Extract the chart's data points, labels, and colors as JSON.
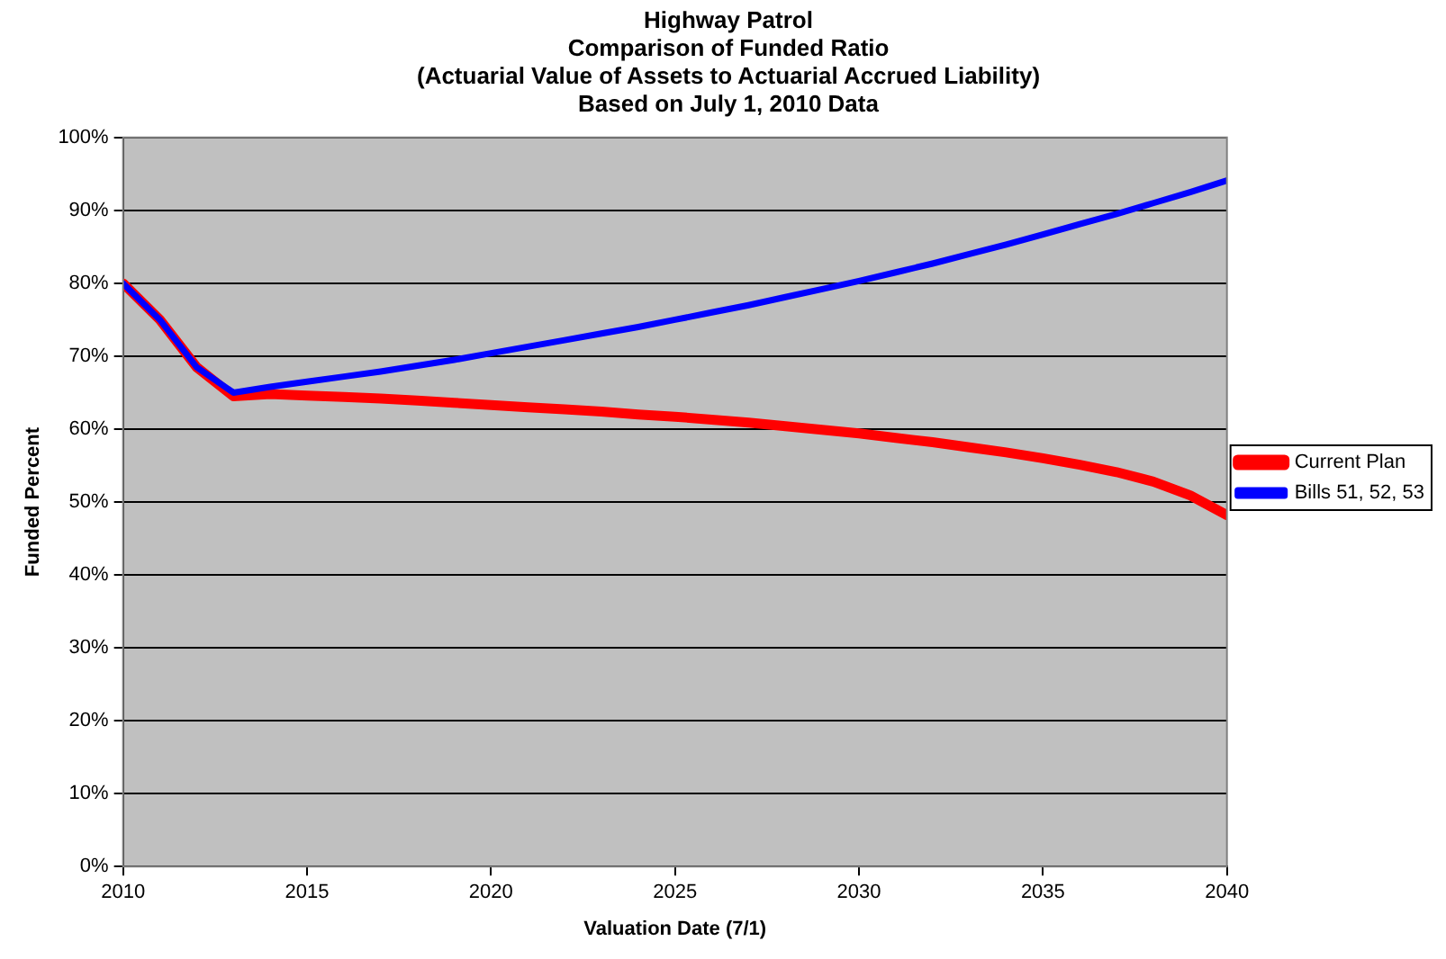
{
  "chart_data": {
    "type": "line",
    "title": [
      "Highway Patrol",
      "Comparison of Funded Ratio",
      "(Actuarial Value of Assets to Actuarial Accrued Liability)",
      "Based on July 1, 2010 Data"
    ],
    "xlabel": "Valuation Date (7/1)",
    "ylabel": "Funded Percent",
    "x": [
      2010,
      2011,
      2012,
      2013,
      2014,
      2015,
      2016,
      2017,
      2018,
      2019,
      2020,
      2021,
      2022,
      2023,
      2024,
      2025,
      2026,
      2027,
      2028,
      2029,
      2030,
      2031,
      2032,
      2033,
      2034,
      2035,
      2036,
      2037,
      2038,
      2039,
      2040
    ],
    "series": [
      {
        "name": "Current Plan",
        "color": "#ff0000",
        "values": [
          80,
          75,
          68.5,
          64.5,
          64.8,
          64.6,
          64.4,
          64.2,
          63.9,
          63.6,
          63.3,
          63.0,
          62.7,
          62.4,
          62.0,
          61.7,
          61.3,
          60.9,
          60.4,
          59.9,
          59.4,
          58.8,
          58.2,
          57.5,
          56.8,
          56.0,
          55.1,
          54.1,
          52.8,
          50.9,
          48.2
        ]
      },
      {
        "name": "Bills 51, 52, 53",
        "color": "#0000ff",
        "values": [
          80,
          75,
          68.5,
          65,
          65.8,
          66.5,
          67.2,
          67.9,
          68.7,
          69.5,
          70.4,
          71.3,
          72.2,
          73.1,
          74.0,
          75.0,
          76.0,
          77.0,
          78.1,
          79.2,
          80.3,
          81.5,
          82.7,
          84.0,
          85.3,
          86.7,
          88.1,
          89.5,
          91.0,
          92.5,
          94.1
        ]
      }
    ],
    "xlim": [
      2010,
      2040
    ],
    "xticks": [
      2010,
      2015,
      2020,
      2025,
      2030,
      2035,
      2040
    ],
    "ylim": [
      0,
      100
    ],
    "yticks": [
      {
        "value": 0,
        "label": "0%"
      },
      {
        "value": 10,
        "label": "10%"
      },
      {
        "value": 20,
        "label": "20%"
      },
      {
        "value": 30,
        "label": "30%"
      },
      {
        "value": 40,
        "label": "40%"
      },
      {
        "value": 50,
        "label": "50%"
      },
      {
        "value": 60,
        "label": "60%"
      },
      {
        "value": 70,
        "label": "70%"
      },
      {
        "value": 80,
        "label": "80%"
      },
      {
        "value": 90,
        "label": "90%"
      },
      {
        "value": 100,
        "label": "100%"
      }
    ],
    "grid": "y",
    "legend": "right",
    "marker": "none",
    "line_style": "solid"
  }
}
